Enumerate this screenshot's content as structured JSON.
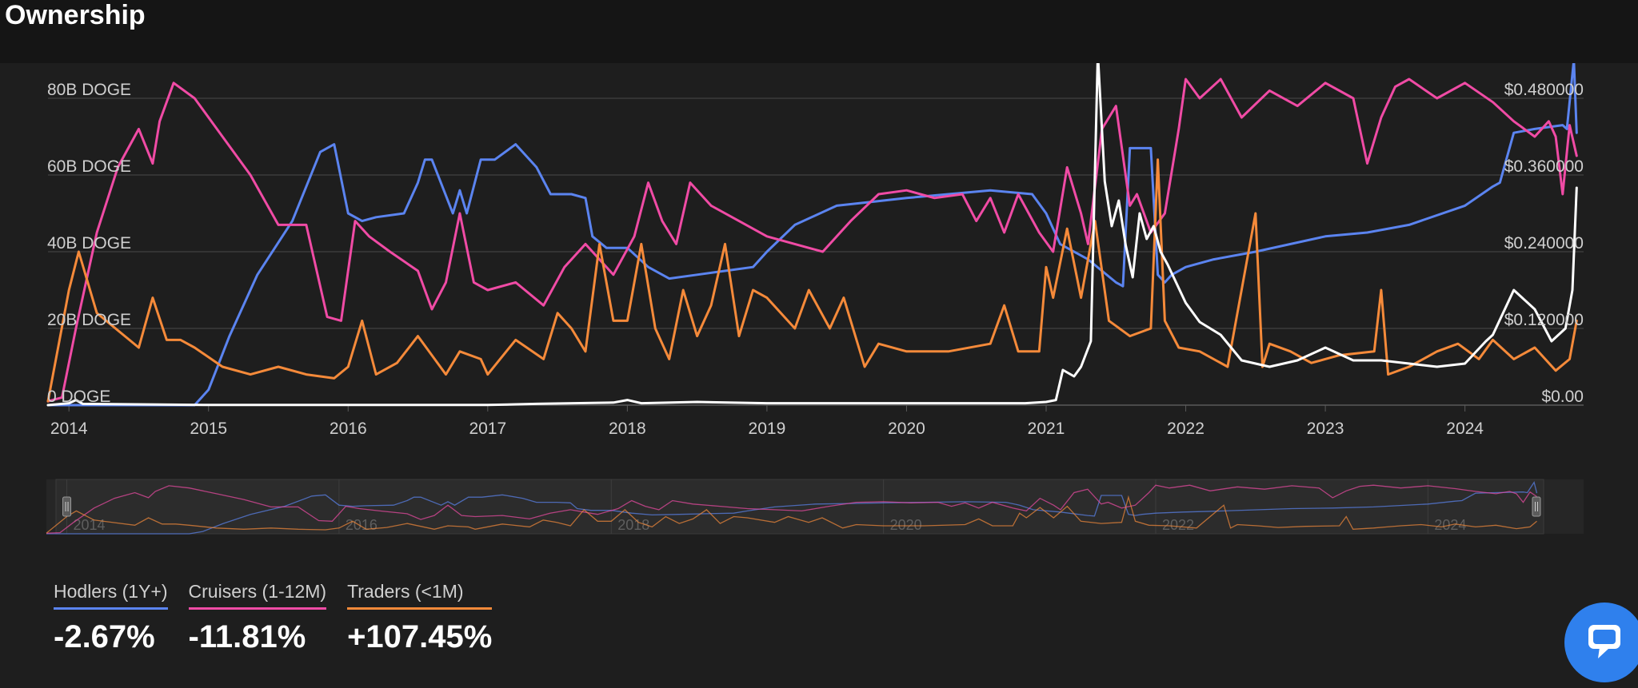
{
  "page": {
    "title": "Ownership"
  },
  "colors": {
    "background": "#1e1e1e",
    "hodlers": "#5b84f0",
    "cruisers": "#f04ba5",
    "traders": "#f58a3a",
    "price": "#ffffff",
    "chat_button": "#2f80ed"
  },
  "legend": [
    {
      "label": "Hodlers (1Y+)",
      "value": "-2.67%",
      "color": "#5b84f0"
    },
    {
      "label": "Cruisers (1-12M)",
      "value": "-11.81%",
      "color": "#f04ba5"
    },
    {
      "label": "Traders (<1M)",
      "value": "+107.45%",
      "color": "#f58a3a"
    }
  ],
  "chat": {
    "icon": "chat-bubble-icon"
  },
  "navigator": {
    "range": [
      2014.0,
      2024.75
    ],
    "year_labels": [
      "2014",
      "2016",
      "2018",
      "2020",
      "2022",
      "2024"
    ]
  },
  "chart_data": {
    "type": "line",
    "title": "Ownership",
    "grid": true,
    "xlim": [
      2013.85,
      2024.85
    ],
    "x_ticks": [
      "2014",
      "2015",
      "2016",
      "2017",
      "2018",
      "2019",
      "2020",
      "2021",
      "2022",
      "2023",
      "2024"
    ],
    "y_left": {
      "unit": "billion DOGE",
      "range": [
        0,
        80
      ],
      "ticks": [
        0,
        20,
        40,
        60,
        80
      ],
      "tick_labels": [
        "0 DOGE",
        "20B DOGE",
        "40B DOGE",
        "60B DOGE",
        "80B DOGE"
      ]
    },
    "y_right": {
      "unit": "USD",
      "range": [
        0,
        0.48
      ],
      "ticks": [
        0,
        0.12,
        0.24,
        0.36,
        0.48
      ],
      "tick_labels": [
        "$0.00",
        "$0.120000",
        "$0.240000",
        "$0.360000",
        "$0.480000"
      ]
    },
    "series": [
      {
        "name": "Hodlers (1Y+)",
        "color": "#5b84f0",
        "axis": "left",
        "x": [
          2013.85,
          2014.4,
          2014.9,
          2015.0,
          2015.15,
          2015.35,
          2015.6,
          2015.8,
          2015.9,
          2016.0,
          2016.1,
          2016.2,
          2016.4,
          2016.5,
          2016.55,
          2016.6,
          2016.75,
          2016.8,
          2016.85,
          2016.95,
          2017.05,
          2017.2,
          2017.35,
          2017.45,
          2017.6,
          2017.7,
          2017.75,
          2017.85,
          2018.0,
          2018.15,
          2018.3,
          2018.5,
          2018.7,
          2018.9,
          2019.0,
          2019.2,
          2019.5,
          2019.75,
          2020.0,
          2020.3,
          2020.6,
          2020.9,
          2021.0,
          2021.1,
          2021.3,
          2021.5,
          2021.55,
          2021.6,
          2021.75,
          2021.8,
          2021.85,
          2021.9,
          2022.0,
          2022.2,
          2022.5,
          2023.0,
          2023.3,
          2023.6,
          2024.0,
          2024.2,
          2024.25,
          2024.35,
          2024.5,
          2024.7,
          2024.73,
          2024.78,
          2024.8
        ],
        "y": [
          0,
          0,
          0,
          4,
          18,
          34,
          48,
          66,
          68,
          50,
          48,
          49,
          50,
          58,
          64,
          64,
          50,
          56,
          50,
          64,
          64,
          68,
          62,
          55,
          55,
          54,
          44,
          41,
          41,
          36,
          33,
          34,
          35,
          36,
          40,
          47,
          52,
          53,
          54,
          55,
          56,
          55,
          50,
          42,
          38,
          32,
          31,
          67,
          67,
          34,
          32,
          34,
          36,
          38,
          40,
          44,
          45,
          47,
          52,
          57,
          58,
          71,
          72,
          73,
          72,
          90,
          71
        ]
      },
      {
        "name": "Cruisers (1-12M)",
        "color": "#f04ba5",
        "axis": "left",
        "x": [
          2013.85,
          2013.95,
          2014.05,
          2014.2,
          2014.35,
          2014.5,
          2014.6,
          2014.65,
          2014.75,
          2014.9,
          2015.1,
          2015.3,
          2015.5,
          2015.7,
          2015.85,
          2015.95,
          2016.05,
          2016.15,
          2016.3,
          2016.5,
          2016.6,
          2016.7,
          2016.8,
          2016.9,
          2017.0,
          2017.2,
          2017.4,
          2017.55,
          2017.7,
          2017.8,
          2017.9,
          2018.05,
          2018.15,
          2018.25,
          2018.35,
          2018.45,
          2018.6,
          2018.8,
          2019.0,
          2019.2,
          2019.4,
          2019.6,
          2019.8,
          2020.0,
          2020.2,
          2020.4,
          2020.5,
          2020.6,
          2020.7,
          2020.8,
          2020.95,
          2021.05,
          2021.15,
          2021.25,
          2021.3,
          2021.4,
          2021.5,
          2021.6,
          2021.65,
          2021.75,
          2021.85,
          2021.95,
          2022.0,
          2022.1,
          2022.25,
          2022.4,
          2022.6,
          2022.8,
          2023.0,
          2023.2,
          2023.3,
          2023.4,
          2023.5,
          2023.6,
          2023.8,
          2024.0,
          2024.2,
          2024.35,
          2024.5,
          2024.6,
          2024.65,
          2024.7,
          2024.75,
          2024.8
        ],
        "y": [
          1,
          2,
          20,
          45,
          62,
          72,
          63,
          74,
          84,
          80,
          70,
          60,
          47,
          47,
          23,
          22,
          48,
          44,
          40,
          35,
          25,
          32,
          50,
          32,
          30,
          32,
          26,
          36,
          42,
          38,
          34,
          44,
          58,
          48,
          42,
          58,
          52,
          48,
          44,
          42,
          40,
          48,
          55,
          56,
          54,
          55,
          48,
          54,
          45,
          55,
          45,
          40,
          62,
          50,
          42,
          72,
          78,
          52,
          55,
          45,
          50,
          72,
          85,
          80,
          85,
          75,
          82,
          78,
          84,
          80,
          63,
          75,
          83,
          85,
          80,
          84,
          79,
          74,
          70,
          74,
          70,
          55,
          73,
          65
        ]
      },
      {
        "name": "Traders (<1M)",
        "color": "#f58a3a",
        "axis": "left",
        "x": [
          2013.85,
          2014.0,
          2014.07,
          2014.2,
          2014.5,
          2014.6,
          2014.7,
          2014.8,
          2014.9,
          2015.1,
          2015.3,
          2015.5,
          2015.7,
          2015.9,
          2016.0,
          2016.1,
          2016.2,
          2016.35,
          2016.5,
          2016.7,
          2016.8,
          2016.95,
          2017.0,
          2017.2,
          2017.4,
          2017.5,
          2017.6,
          2017.7,
          2017.8,
          2017.9,
          2018.0,
          2018.1,
          2018.2,
          2018.3,
          2018.4,
          2018.5,
          2018.6,
          2018.7,
          2018.8,
          2018.9,
          2019.0,
          2019.2,
          2019.3,
          2019.45,
          2019.55,
          2019.7,
          2019.8,
          2020.0,
          2020.3,
          2020.6,
          2020.7,
          2020.8,
          2020.95,
          2021.0,
          2021.05,
          2021.15,
          2021.25,
          2021.35,
          2021.45,
          2021.6,
          2021.75,
          2021.8,
          2021.85,
          2021.95,
          2022.1,
          2022.3,
          2022.5,
          2022.55,
          2022.6,
          2022.75,
          2022.9,
          2023.1,
          2023.35,
          2023.4,
          2023.45,
          2023.6,
          2023.7,
          2023.8,
          2023.95,
          2024.1,
          2024.2,
          2024.35,
          2024.5,
          2024.65,
          2024.75,
          2024.8
        ],
        "y": [
          1,
          30,
          40,
          24,
          15,
          28,
          17,
          17,
          15,
          10,
          8,
          10,
          8,
          7,
          10,
          22,
          8,
          11,
          18,
          8,
          14,
          12,
          8,
          17,
          12,
          24,
          20,
          14,
          42,
          22,
          22,
          42,
          20,
          12,
          30,
          18,
          26,
          42,
          18,
          30,
          28,
          20,
          30,
          20,
          28,
          10,
          16,
          14,
          14,
          16,
          26,
          14,
          14,
          36,
          28,
          46,
          28,
          48,
          22,
          18,
          20,
          64,
          22,
          15,
          14,
          10,
          50,
          10,
          16,
          14,
          11,
          13,
          14,
          30,
          8,
          10,
          12,
          14,
          16,
          12,
          17,
          12,
          15,
          9,
          12,
          22
        ]
      },
      {
        "name": "Price",
        "color": "#ffffff",
        "axis": "right",
        "x": [
          2013.85,
          2014.0,
          2014.05,
          2014.1,
          2015.0,
          2016.0,
          2017.0,
          2017.35,
          2017.9,
          2018.0,
          2018.1,
          2018.5,
          2019.0,
          2019.5,
          2020.0,
          2020.5,
          2020.85,
          2021.0,
          2021.07,
          2021.12,
          2021.2,
          2021.25,
          2021.32,
          2021.37,
          2021.42,
          2021.47,
          2021.52,
          2021.57,
          2021.62,
          2021.67,
          2021.72,
          2021.77,
          2021.82,
          2021.87,
          2022.0,
          2022.1,
          2022.25,
          2022.4,
          2022.6,
          2022.8,
          2023.0,
          2023.2,
          2023.4,
          2023.6,
          2023.8,
          2024.0,
          2024.15,
          2024.2,
          2024.35,
          2024.5,
          2024.62,
          2024.72,
          2024.77,
          2024.8
        ],
        "y": [
          0.0,
          0.003,
          0.008,
          0.002,
          0.0002,
          0.0002,
          0.0003,
          0.002,
          0.004,
          0.008,
          0.003,
          0.005,
          0.003,
          0.003,
          0.003,
          0.003,
          0.003,
          0.005,
          0.008,
          0.055,
          0.045,
          0.06,
          0.1,
          0.55,
          0.35,
          0.28,
          0.32,
          0.25,
          0.2,
          0.3,
          0.26,
          0.28,
          0.24,
          0.22,
          0.16,
          0.13,
          0.11,
          0.07,
          0.06,
          0.07,
          0.09,
          0.07,
          0.07,
          0.065,
          0.06,
          0.065,
          0.1,
          0.11,
          0.18,
          0.15,
          0.1,
          0.12,
          0.18,
          0.34
        ]
      }
    ]
  }
}
